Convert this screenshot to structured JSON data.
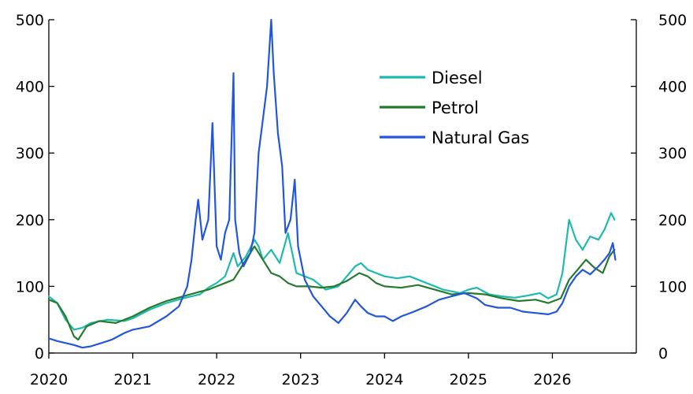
{
  "chart_data": {
    "type": "line",
    "title": "",
    "xlabel": "",
    "ylabel": "",
    "xlim": [
      2020,
      2027
    ],
    "ylim": [
      0,
      500
    ],
    "x_ticks": [
      "2020",
      "2021",
      "2022",
      "2023",
      "2024",
      "2025",
      "2026"
    ],
    "y_ticks_left": [
      "0",
      "100",
      "200",
      "300",
      "400",
      "500"
    ],
    "y_ticks_right": [
      "0",
      "100",
      "200",
      "300",
      "400",
      "500"
    ],
    "grid": false,
    "legend_position": "top-right",
    "series": [
      {
        "name": "Diesel",
        "color": "#1fb9ad",
        "points": [
          [
            2020.0,
            85
          ],
          [
            2020.1,
            75
          ],
          [
            2020.2,
            50
          ],
          [
            2020.3,
            35
          ],
          [
            2020.4,
            38
          ],
          [
            2020.5,
            45
          ],
          [
            2020.7,
            50
          ],
          [
            2020.9,
            48
          ],
          [
            2021.0,
            52
          ],
          [
            2021.2,
            65
          ],
          [
            2021.4,
            75
          ],
          [
            2021.6,
            82
          ],
          [
            2021.8,
            88
          ],
          [
            2021.9,
            98
          ],
          [
            2022.0,
            105
          ],
          [
            2022.1,
            115
          ],
          [
            2022.2,
            150
          ],
          [
            2022.25,
            130
          ],
          [
            2022.35,
            145
          ],
          [
            2022.45,
            170
          ],
          [
            2022.5,
            160
          ],
          [
            2022.55,
            140
          ],
          [
            2022.65,
            155
          ],
          [
            2022.75,
            135
          ],
          [
            2022.85,
            180
          ],
          [
            2022.9,
            150
          ],
          [
            2022.95,
            120
          ],
          [
            2023.05,
            115
          ],
          [
            2023.15,
            110
          ],
          [
            2023.3,
            95
          ],
          [
            2023.45,
            100
          ],
          [
            2023.55,
            115
          ],
          [
            2023.65,
            130
          ],
          [
            2023.72,
            135
          ],
          [
            2023.8,
            125
          ],
          [
            2023.9,
            120
          ],
          [
            2024.0,
            115
          ],
          [
            2024.15,
            112
          ],
          [
            2024.3,
            115
          ],
          [
            2024.5,
            105
          ],
          [
            2024.7,
            95
          ],
          [
            2024.9,
            90
          ],
          [
            2025.0,
            95
          ],
          [
            2025.1,
            98
          ],
          [
            2025.25,
            88
          ],
          [
            2025.4,
            85
          ],
          [
            2025.55,
            83
          ],
          [
            2025.7,
            86
          ],
          [
            2025.85,
            90
          ],
          [
            2025.95,
            82
          ],
          [
            2026.05,
            88
          ],
          [
            2026.12,
            120
          ],
          [
            2026.2,
            200
          ],
          [
            2026.28,
            170
          ],
          [
            2026.36,
            155
          ],
          [
            2026.45,
            175
          ],
          [
            2026.55,
            170
          ],
          [
            2026.62,
            185
          ],
          [
            2026.7,
            210
          ],
          [
            2026.74,
            200
          ]
        ]
      },
      {
        "name": "Petrol",
        "color": "#267a2e",
        "points": [
          [
            2020.0,
            80
          ],
          [
            2020.1,
            75
          ],
          [
            2020.2,
            55
          ],
          [
            2020.3,
            25
          ],
          [
            2020.35,
            20
          ],
          [
            2020.45,
            40
          ],
          [
            2020.6,
            48
          ],
          [
            2020.8,
            45
          ],
          [
            2021.0,
            55
          ],
          [
            2021.2,
            68
          ],
          [
            2021.4,
            78
          ],
          [
            2021.6,
            85
          ],
          [
            2021.8,
            92
          ],
          [
            2021.9,
            95
          ],
          [
            2022.0,
            100
          ],
          [
            2022.1,
            105
          ],
          [
            2022.2,
            110
          ],
          [
            2022.3,
            130
          ],
          [
            2022.4,
            150
          ],
          [
            2022.45,
            160
          ],
          [
            2022.55,
            140
          ],
          [
            2022.65,
            120
          ],
          [
            2022.75,
            115
          ],
          [
            2022.85,
            105
          ],
          [
            2022.95,
            100
          ],
          [
            2023.1,
            100
          ],
          [
            2023.25,
            98
          ],
          [
            2023.4,
            100
          ],
          [
            2023.55,
            108
          ],
          [
            2023.7,
            120
          ],
          [
            2023.8,
            115
          ],
          [
            2023.9,
            105
          ],
          [
            2024.0,
            100
          ],
          [
            2024.2,
            98
          ],
          [
            2024.4,
            102
          ],
          [
            2024.6,
            95
          ],
          [
            2024.8,
            88
          ],
          [
            2025.0,
            90
          ],
          [
            2025.2,
            88
          ],
          [
            2025.4,
            82
          ],
          [
            2025.6,
            78
          ],
          [
            2025.8,
            80
          ],
          [
            2025.95,
            75
          ],
          [
            2026.1,
            82
          ],
          [
            2026.2,
            110
          ],
          [
            2026.3,
            125
          ],
          [
            2026.4,
            140
          ],
          [
            2026.5,
            128
          ],
          [
            2026.6,
            120
          ],
          [
            2026.68,
            145
          ],
          [
            2026.74,
            155
          ]
        ]
      },
      {
        "name": "Natural Gas",
        "color": "#2456d8",
        "points": [
          [
            2020.0,
            22
          ],
          [
            2020.1,
            18
          ],
          [
            2020.2,
            15
          ],
          [
            2020.3,
            12
          ],
          [
            2020.4,
            8
          ],
          [
            2020.5,
            10
          ],
          [
            2020.6,
            14
          ],
          [
            2020.75,
            20
          ],
          [
            2020.9,
            30
          ],
          [
            2021.0,
            35
          ],
          [
            2021.2,
            40
          ],
          [
            2021.4,
            55
          ],
          [
            2021.55,
            70
          ],
          [
            2021.65,
            100
          ],
          [
            2021.7,
            140
          ],
          [
            2021.75,
            200
          ],
          [
            2021.78,
            230
          ],
          [
            2021.83,
            170
          ],
          [
            2021.9,
            200
          ],
          [
            2021.95,
            345
          ],
          [
            2022.0,
            160
          ],
          [
            2022.05,
            140
          ],
          [
            2022.1,
            180
          ],
          [
            2022.15,
            200
          ],
          [
            2022.2,
            420
          ],
          [
            2022.22,
            200
          ],
          [
            2022.27,
            150
          ],
          [
            2022.32,
            130
          ],
          [
            2022.4,
            150
          ],
          [
            2022.45,
            180
          ],
          [
            2022.5,
            300
          ],
          [
            2022.55,
            350
          ],
          [
            2022.6,
            400
          ],
          [
            2022.65,
            500
          ],
          [
            2022.68,
            420
          ],
          [
            2022.73,
            330
          ],
          [
            2022.78,
            280
          ],
          [
            2022.82,
            180
          ],
          [
            2022.88,
            200
          ],
          [
            2022.93,
            260
          ],
          [
            2022.97,
            160
          ],
          [
            2023.05,
            110
          ],
          [
            2023.15,
            85
          ],
          [
            2023.25,
            70
          ],
          [
            2023.35,
            55
          ],
          [
            2023.45,
            45
          ],
          [
            2023.55,
            60
          ],
          [
            2023.65,
            80
          ],
          [
            2023.72,
            70
          ],
          [
            2023.8,
            60
          ],
          [
            2023.9,
            55
          ],
          [
            2024.0,
            55
          ],
          [
            2024.1,
            48
          ],
          [
            2024.2,
            55
          ],
          [
            2024.35,
            62
          ],
          [
            2024.5,
            70
          ],
          [
            2024.65,
            80
          ],
          [
            2024.8,
            85
          ],
          [
            2024.95,
            90
          ],
          [
            2025.1,
            82
          ],
          [
            2025.2,
            72
          ],
          [
            2025.35,
            68
          ],
          [
            2025.5,
            68
          ],
          [
            2025.65,
            62
          ],
          [
            2025.8,
            60
          ],
          [
            2025.95,
            58
          ],
          [
            2026.05,
            62
          ],
          [
            2026.12,
            75
          ],
          [
            2026.2,
            100
          ],
          [
            2026.28,
            115
          ],
          [
            2026.36,
            125
          ],
          [
            2026.45,
            118
          ],
          [
            2026.55,
            130
          ],
          [
            2026.62,
            140
          ],
          [
            2026.68,
            150
          ],
          [
            2026.72,
            165
          ],
          [
            2026.75,
            140
          ]
        ]
      }
    ]
  }
}
